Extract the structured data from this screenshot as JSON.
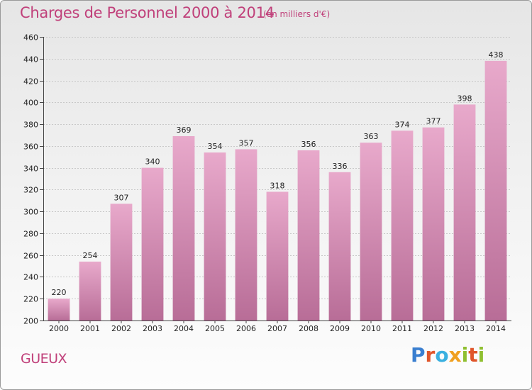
{
  "header": {
    "title": "Charges de Personnel 2000 à 2014",
    "subtitle": "(en milliers d'€)"
  },
  "footer": {
    "commune": "GUEUX",
    "logo_text": "Proxiti",
    "logo_colors": [
      "#3a7fd0",
      "#e0552a",
      "#3ab0e0",
      "#f0a020",
      "#8fbf30",
      "#e0552a",
      "#8fbf30"
    ]
  },
  "chart_data": {
    "type": "bar",
    "title": "Charges de Personnel 2000 à 2014",
    "subtitle": "(en milliers d'€)",
    "categories": [
      "2000",
      "2001",
      "2002",
      "2003",
      "2004",
      "2005",
      "2006",
      "2007",
      "2008",
      "2009",
      "2010",
      "2011",
      "2012",
      "2013",
      "2014"
    ],
    "values": [
      220,
      254,
      307,
      340,
      369,
      354,
      357,
      318,
      356,
      336,
      363,
      374,
      377,
      398,
      438
    ],
    "ylim": [
      200,
      460
    ],
    "yticks": [
      200,
      220,
      240,
      260,
      280,
      300,
      320,
      340,
      360,
      380,
      400,
      420,
      440,
      460
    ],
    "grid": true,
    "bar_color": "#d98fb5",
    "bar_color_light": "#e8a9cb",
    "bar_color_dark": "#b86d97"
  }
}
